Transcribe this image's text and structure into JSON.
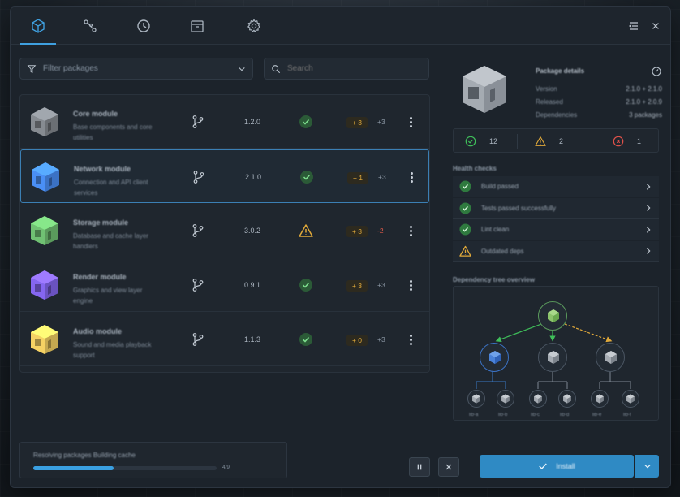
{
  "tabs": [
    {
      "name": "cube-icon",
      "active": true
    },
    {
      "name": "flow-icon",
      "active": false
    },
    {
      "name": "clock-icon",
      "active": false
    },
    {
      "name": "archive-icon",
      "active": false
    },
    {
      "name": "gear-icon",
      "active": false
    }
  ],
  "toolbar": {
    "filter_label": "Filter packages",
    "search_placeholder": "Search"
  },
  "packages": [
    {
      "name": "Core module",
      "desc_line1": "Base components and core",
      "desc_line2": "utilities",
      "version": "1.2.0",
      "status": "ok",
      "plus": "+ 3",
      "delta": "+3",
      "color": "#6b6f74",
      "selected": false,
      "delta_negative": false
    },
    {
      "name": "Network module",
      "desc_line1": "Connection and API client",
      "desc_line2": "services",
      "version": "2.1.0",
      "status": "ok",
      "plus": "+ 1",
      "delta": "+3",
      "color": "#3b72c4",
      "selected": true,
      "delta_negative": false
    },
    {
      "name": "Storage module",
      "desc_line1": "Database and cache layer",
      "desc_line2": "handlers",
      "version": "3.0.2",
      "status": "warn",
      "plus": "+ 3",
      "delta": "-2",
      "color": "#5a9a5c",
      "selected": false,
      "delta_negative": true
    },
    {
      "name": "Render module",
      "desc_line1": "Graphics and view layer",
      "desc_line2": "engine",
      "version": "0.9.1",
      "status": "ok",
      "plus": "+ 3",
      "delta": "+3",
      "color": "#6a52c0",
      "selected": false,
      "delta_negative": false
    },
    {
      "name": "Audio module",
      "desc_line1": "Sound and media playback",
      "desc_line2": "support",
      "version": "1.1.3",
      "status": "ok",
      "plus": "+ 0",
      "delta": "+3",
      "color": "#c4a850",
      "selected": false,
      "delta_negative": false
    }
  ],
  "detail": {
    "title": "Package details",
    "rows": [
      {
        "key": "Version",
        "value": "2.1.0 + 2.1.0"
      },
      {
        "key": "Released",
        "value": "2.1.0 + 2.0.9"
      },
      {
        "key": "Dependencies",
        "value": "3 packages"
      }
    ],
    "counts": {
      "ok": "12",
      "warn": "2",
      "error": "1"
    }
  },
  "checks": {
    "title": "Health checks",
    "items": [
      {
        "label": "Build passed",
        "status": "ok"
      },
      {
        "label": "Tests passed successfully",
        "status": "ok"
      },
      {
        "label": "Lint clean",
        "status": "ok"
      },
      {
        "label": "Outdated deps",
        "status": "warn"
      }
    ]
  },
  "tree": {
    "title": "Dependency tree overview",
    "leaf_labels": [
      "lib-a",
      "lib-b",
      "lib-c",
      "lib-d",
      "lib-e",
      "lib-f"
    ]
  },
  "footer": {
    "progress_label": "Resolving packages  Building cache",
    "progress_value": 0.44,
    "progress_text": "4/9",
    "primary_label": "Install"
  },
  "colors": {
    "accent": "#3fa0e0",
    "ok": "#3fbf5a",
    "warn": "#e0a93a",
    "error": "#e0524a"
  }
}
